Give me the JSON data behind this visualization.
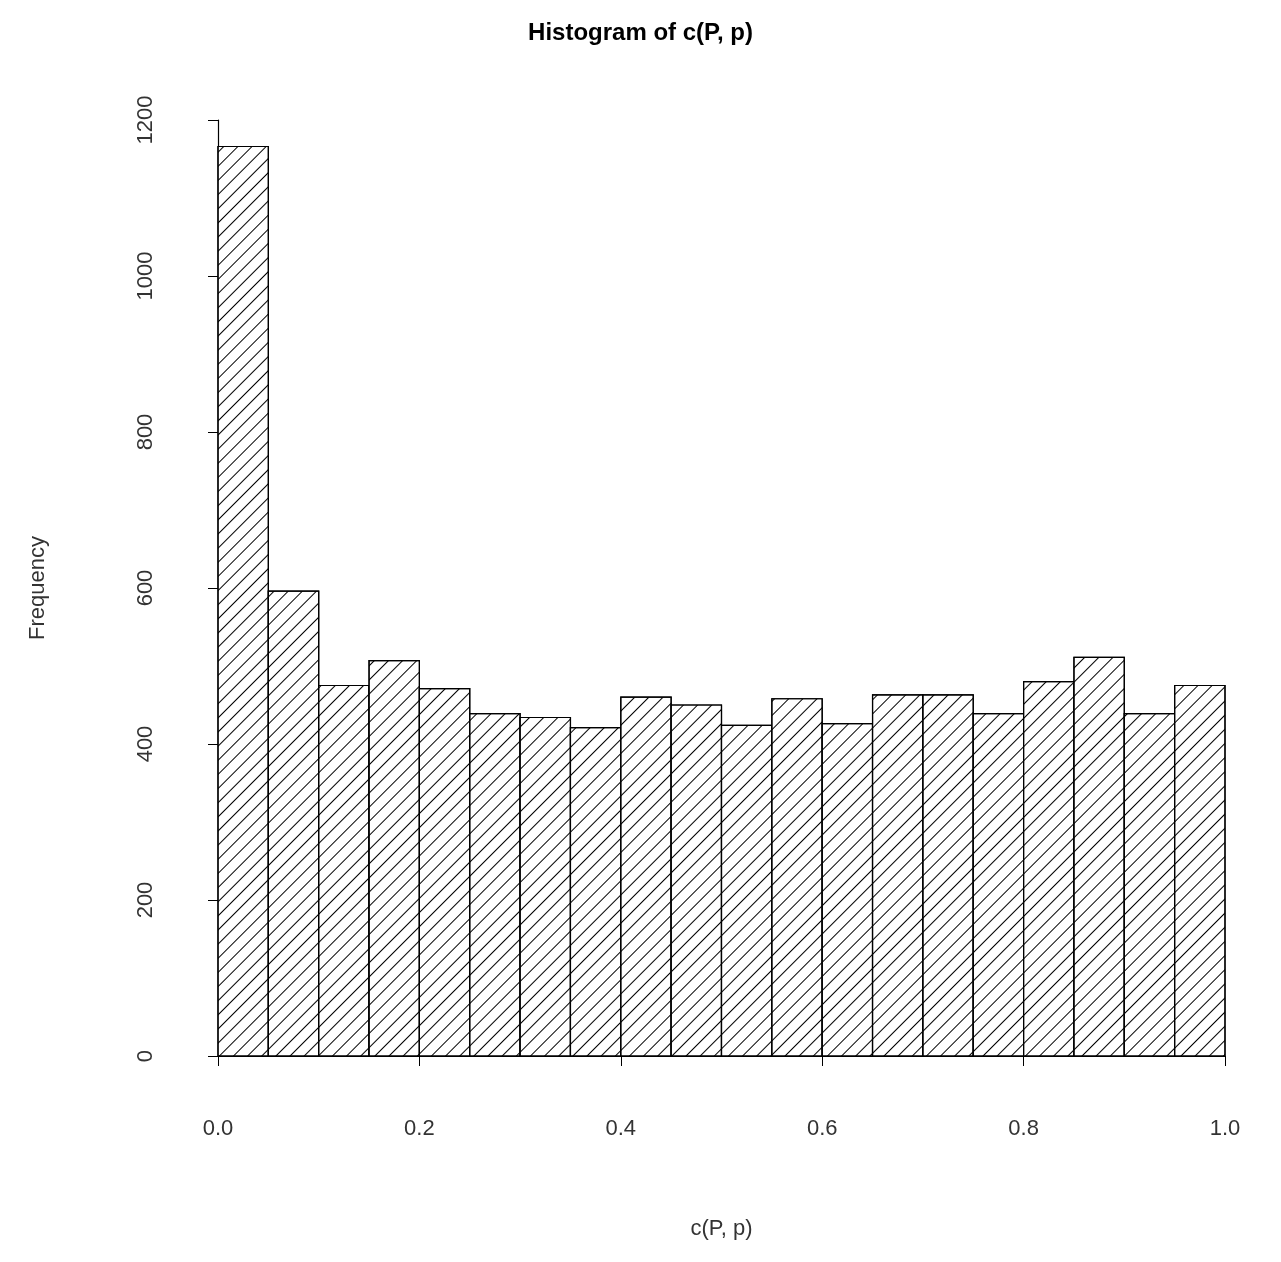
{
  "chart_data": {
    "type": "histogram",
    "title": "Histogram of c(P, p)",
    "xlabel": "c(P, p)",
    "ylabel": "Frequency",
    "bins": [
      0,
      0.05,
      0.1,
      0.15,
      0.2,
      0.25,
      0.3,
      0.35,
      0.4,
      0.45,
      0.5,
      0.55,
      0.6,
      0.65,
      0.7,
      0.75,
      0.8,
      0.85,
      0.9,
      0.95,
      1.0
    ],
    "values": [
      1166,
      596,
      475,
      507,
      471,
      439,
      434,
      421,
      460,
      450,
      424,
      458,
      426,
      463,
      463,
      439,
      480,
      511,
      439,
      475
    ],
    "color": "#ffffff",
    "xlim": [
      0,
      1
    ],
    "xticks": [
      {
        "value": 0,
        "label": "0.0"
      },
      {
        "value": 0.2,
        "label": "0.2"
      },
      {
        "value": 0.4,
        "label": "0.4"
      },
      {
        "value": 0.6,
        "label": "0.6"
      },
      {
        "value": 0.8,
        "label": "0.8"
      },
      {
        "value": 1,
        "label": "1.0"
      }
    ],
    "ylim": [
      0,
      1200
    ],
    "yticks": [
      0,
      200,
      400,
      600,
      800,
      1000,
      1200
    ]
  }
}
